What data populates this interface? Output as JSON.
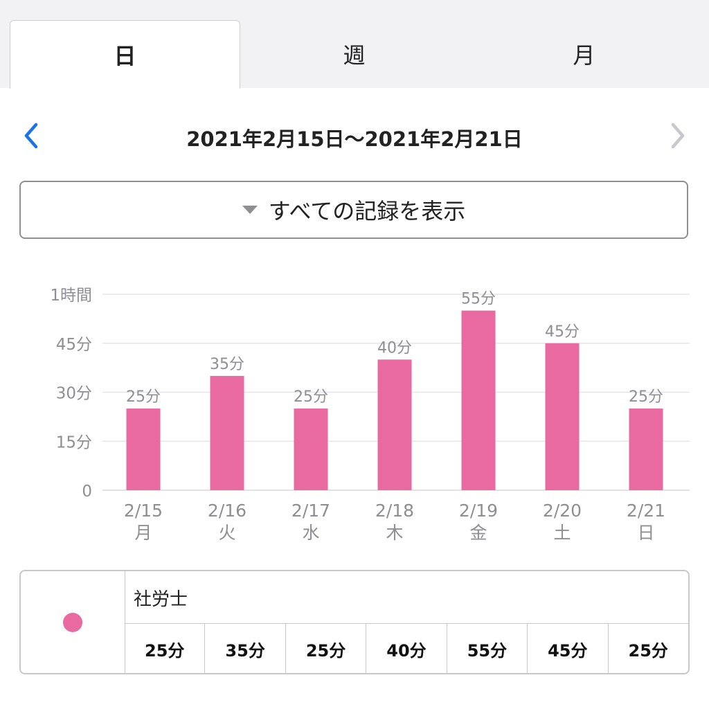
{
  "tabs": [
    {
      "label": "日",
      "active": true
    },
    {
      "label": "週",
      "active": false
    },
    {
      "label": "月",
      "active": false
    }
  ],
  "date_range": "2021年2月15日〜2021年2月21日",
  "filter_label": "すべての記録を表示",
  "colors": {
    "accent": "#1a73e8",
    "bar": "#e96aa1",
    "nav_disabled": "#c7c7cc"
  },
  "icons": {
    "prev": "chevron-left-icon",
    "next": "chevron-right-icon",
    "filter": "triangle-down-icon"
  },
  "chart_data": {
    "type": "bar",
    "categories": [
      "2/15",
      "2/16",
      "2/17",
      "2/18",
      "2/19",
      "2/20",
      "2/21"
    ],
    "weekdays": [
      "月",
      "火",
      "水",
      "木",
      "金",
      "土",
      "日"
    ],
    "values": [
      25,
      35,
      25,
      40,
      55,
      45,
      25
    ],
    "value_labels": [
      "25分",
      "35分",
      "25分",
      "40分",
      "55分",
      "45分",
      "25分"
    ],
    "yticks": [
      {
        "value": 0,
        "label": "0"
      },
      {
        "value": 15,
        "label": "15分"
      },
      {
        "value": 30,
        "label": "30分"
      },
      {
        "value": 45,
        "label": "45分"
      },
      {
        "value": 60,
        "label": "1時間"
      }
    ],
    "ylim": [
      0,
      60
    ],
    "grid": true
  },
  "legend": {
    "name": "社労士",
    "values": [
      "25分",
      "35分",
      "25分",
      "40分",
      "55分",
      "45分",
      "25分"
    ]
  }
}
